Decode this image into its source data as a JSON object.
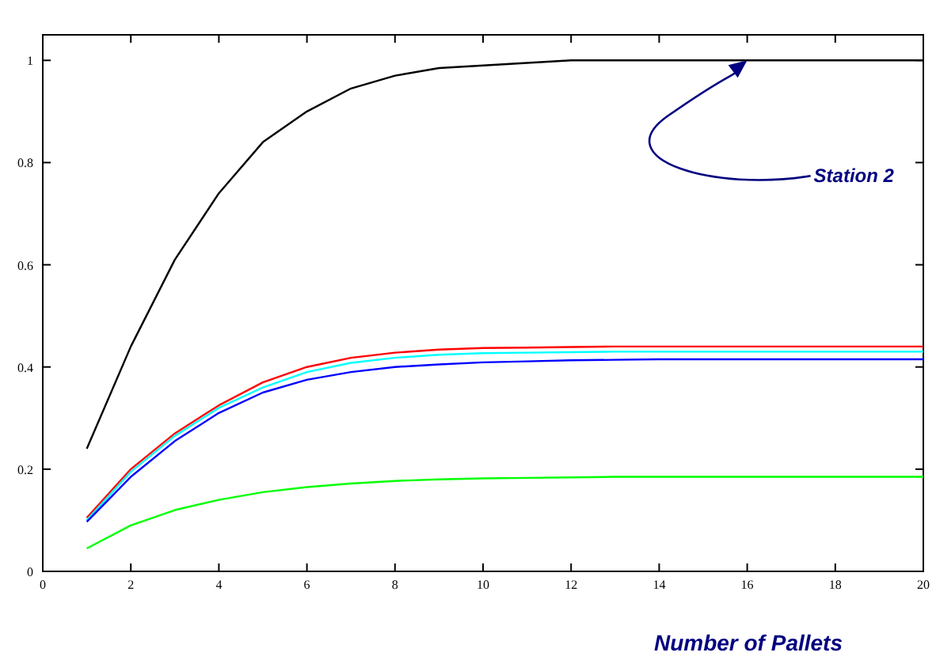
{
  "chart_data": {
    "type": "line",
    "xlabel": "Number of Pallets",
    "x": [
      1,
      2,
      3,
      4,
      5,
      6,
      7,
      8,
      9,
      10,
      11,
      12,
      13,
      14,
      15,
      16,
      17,
      18,
      19,
      20
    ],
    "series": [
      {
        "color": "#000000",
        "values": [
          0.24,
          0.44,
          0.61,
          0.74,
          0.84,
          0.9,
          0.945,
          0.97,
          0.985,
          0.99,
          0.995,
          1,
          1,
          1,
          1,
          1,
          1,
          1,
          1,
          1
        ]
      },
      {
        "color": "#ff0000",
        "values": [
          0.105,
          0.2,
          0.27,
          0.325,
          0.37,
          0.4,
          0.418,
          0.428,
          0.434,
          0.437,
          0.438,
          0.439,
          0.44,
          0.44,
          0.44,
          0.44,
          0.44,
          0.44,
          0.44,
          0.44
        ]
      },
      {
        "color": "#00ffff",
        "values": [
          0.1,
          0.195,
          0.265,
          0.32,
          0.36,
          0.39,
          0.408,
          0.418,
          0.424,
          0.427,
          0.428,
          0.429,
          0.43,
          0.43,
          0.43,
          0.43,
          0.43,
          0.43,
          0.43,
          0.43
        ]
      },
      {
        "color": "#0000ff",
        "values": [
          0.097,
          0.185,
          0.255,
          0.31,
          0.35,
          0.375,
          0.39,
          0.4,
          0.405,
          0.409,
          0.411,
          0.413,
          0.414,
          0.415,
          0.415,
          0.415,
          0.415,
          0.415,
          0.415,
          0.415
        ]
      },
      {
        "color": "#00ff00",
        "values": [
          0.045,
          0.09,
          0.12,
          0.14,
          0.155,
          0.165,
          0.172,
          0.177,
          0.18,
          0.182,
          0.183,
          0.184,
          0.185,
          0.185,
          0.185,
          0.185,
          0.185,
          0.185,
          0.185,
          0.185
        ]
      }
    ],
    "annotations": [
      {
        "text": "Station 2",
        "x": 16,
        "y": 1
      }
    ],
    "xlim": [
      0,
      20
    ],
    "xticks": [
      0,
      2,
      4,
      6,
      8,
      10,
      12,
      14,
      16,
      18,
      20
    ],
    "ylim": [
      0,
      1.05
    ],
    "yticks": [
      0,
      0.2,
      0.4,
      0.6,
      0.8,
      1
    ],
    "grid": false,
    "marker": "none",
    "line_style": "solid"
  }
}
